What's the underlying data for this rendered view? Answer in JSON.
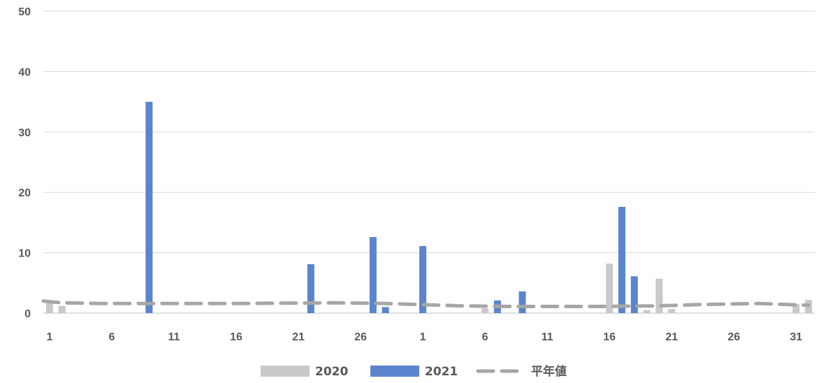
{
  "chart_data": {
    "type": "bar",
    "title": "",
    "xlabel": "",
    "ylabel": "",
    "ylim": [
      0,
      50
    ],
    "yticks": [
      0,
      10,
      20,
      30,
      40,
      50
    ],
    "grid": true,
    "legend_position": "bottom",
    "x_tick_labels": [
      "1",
      "6",
      "11",
      "16",
      "21",
      "26",
      "1",
      "6",
      "11",
      "16",
      "21",
      "26",
      "31"
    ],
    "series": [
      {
        "name": "2020",
        "kind": "bar",
        "color": "#c9c9c9",
        "points": [
          [
            1,
            2.0
          ],
          [
            2,
            1.2
          ],
          [
            36,
            0.8
          ],
          [
            46,
            8.2
          ],
          [
            47,
            14.2
          ],
          [
            49,
            0.5
          ],
          [
            50,
            5.7
          ],
          [
            51,
            0.7
          ],
          [
            61,
            1.5
          ],
          [
            62,
            2.2
          ]
        ]
      },
      {
        "name": "2021",
        "kind": "bar",
        "color": "#5b84cc",
        "points": [
          [
            9,
            35.0
          ],
          [
            22,
            8.1
          ],
          [
            27,
            12.6
          ],
          [
            28,
            1.0
          ],
          [
            31,
            11.1
          ],
          [
            37,
            2.1
          ],
          [
            39,
            3.6
          ],
          [
            47,
            17.6
          ],
          [
            48,
            6.1
          ]
        ]
      },
      {
        "name": "平年値",
        "kind": "line",
        "dash": true,
        "color": "#a6a6a6",
        "points": [
          [
            0.5,
            2.0
          ],
          [
            2,
            1.7
          ],
          [
            5,
            1.6
          ],
          [
            10,
            1.6
          ],
          [
            16,
            1.6
          ],
          [
            24,
            1.7
          ],
          [
            28,
            1.6
          ],
          [
            31,
            1.4
          ],
          [
            34,
            1.2
          ],
          [
            38,
            1.1
          ],
          [
            45,
            1.1
          ],
          [
            50,
            1.2
          ],
          [
            53,
            1.4
          ],
          [
            58,
            1.6
          ],
          [
            62,
            1.3
          ]
        ]
      }
    ]
  }
}
